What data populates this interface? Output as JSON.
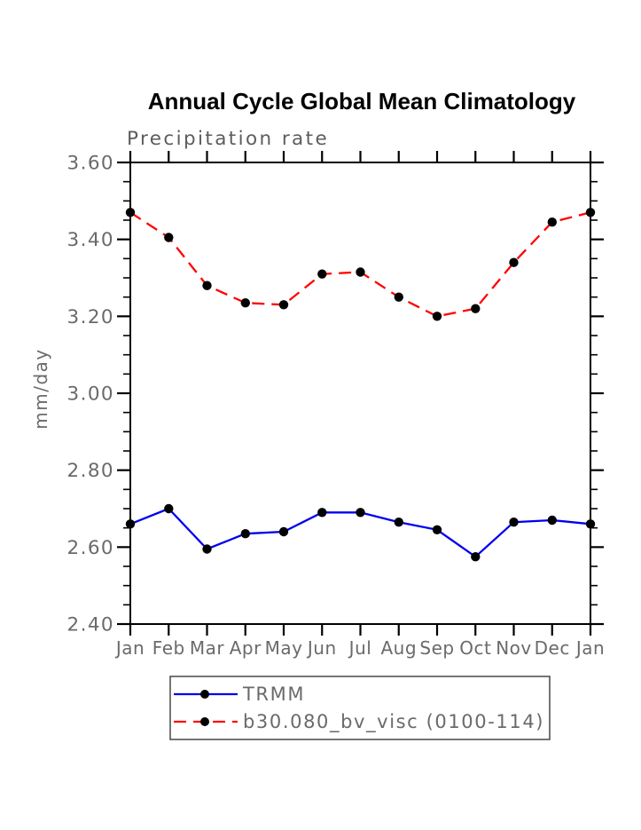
{
  "chart_data": {
    "type": "line",
    "title": "Annual Cycle Global Mean Climatology",
    "subtitle": "Precipitation rate",
    "ylabel": "mm/day",
    "categories": [
      "Jan",
      "Feb",
      "Mar",
      "Apr",
      "May",
      "Jun",
      "Jul",
      "Aug",
      "Sep",
      "Oct",
      "Nov",
      "Dec",
      "Jan"
    ],
    "ylim": [
      2.4,
      3.6
    ],
    "ytick_major_step": 0.2,
    "ytick_minor_step": 0.05,
    "ytick_labels": [
      "2.40",
      "2.60",
      "2.80",
      "3.00",
      "3.20",
      "3.40",
      "3.60"
    ],
    "grid": false,
    "legend_position": "bottom",
    "series": [
      {
        "name": "TRMM",
        "line_style": "solid",
        "color": "#0000ee",
        "marker": "filled-circle",
        "marker_color": "#000000",
        "values": [
          2.66,
          2.7,
          2.595,
          2.635,
          2.64,
          2.69,
          2.69,
          2.665,
          2.645,
          2.575,
          2.665,
          2.67,
          2.66
        ]
      },
      {
        "name": "b30.080_bv_visc (0100-114)",
        "line_style": "dashed",
        "color": "#ff0000",
        "marker": "filled-circle",
        "marker_color": "#000000",
        "values": [
          3.47,
          3.405,
          3.28,
          3.235,
          3.23,
          3.31,
          3.315,
          3.25,
          3.2,
          3.22,
          3.34,
          3.445,
          3.47
        ]
      }
    ],
    "colors": {
      "axis": "#000000",
      "label_gray": "#6a6a6a",
      "subtitle_gray": "#5d5d5d",
      "legend_border": "#3a3a3a"
    }
  }
}
